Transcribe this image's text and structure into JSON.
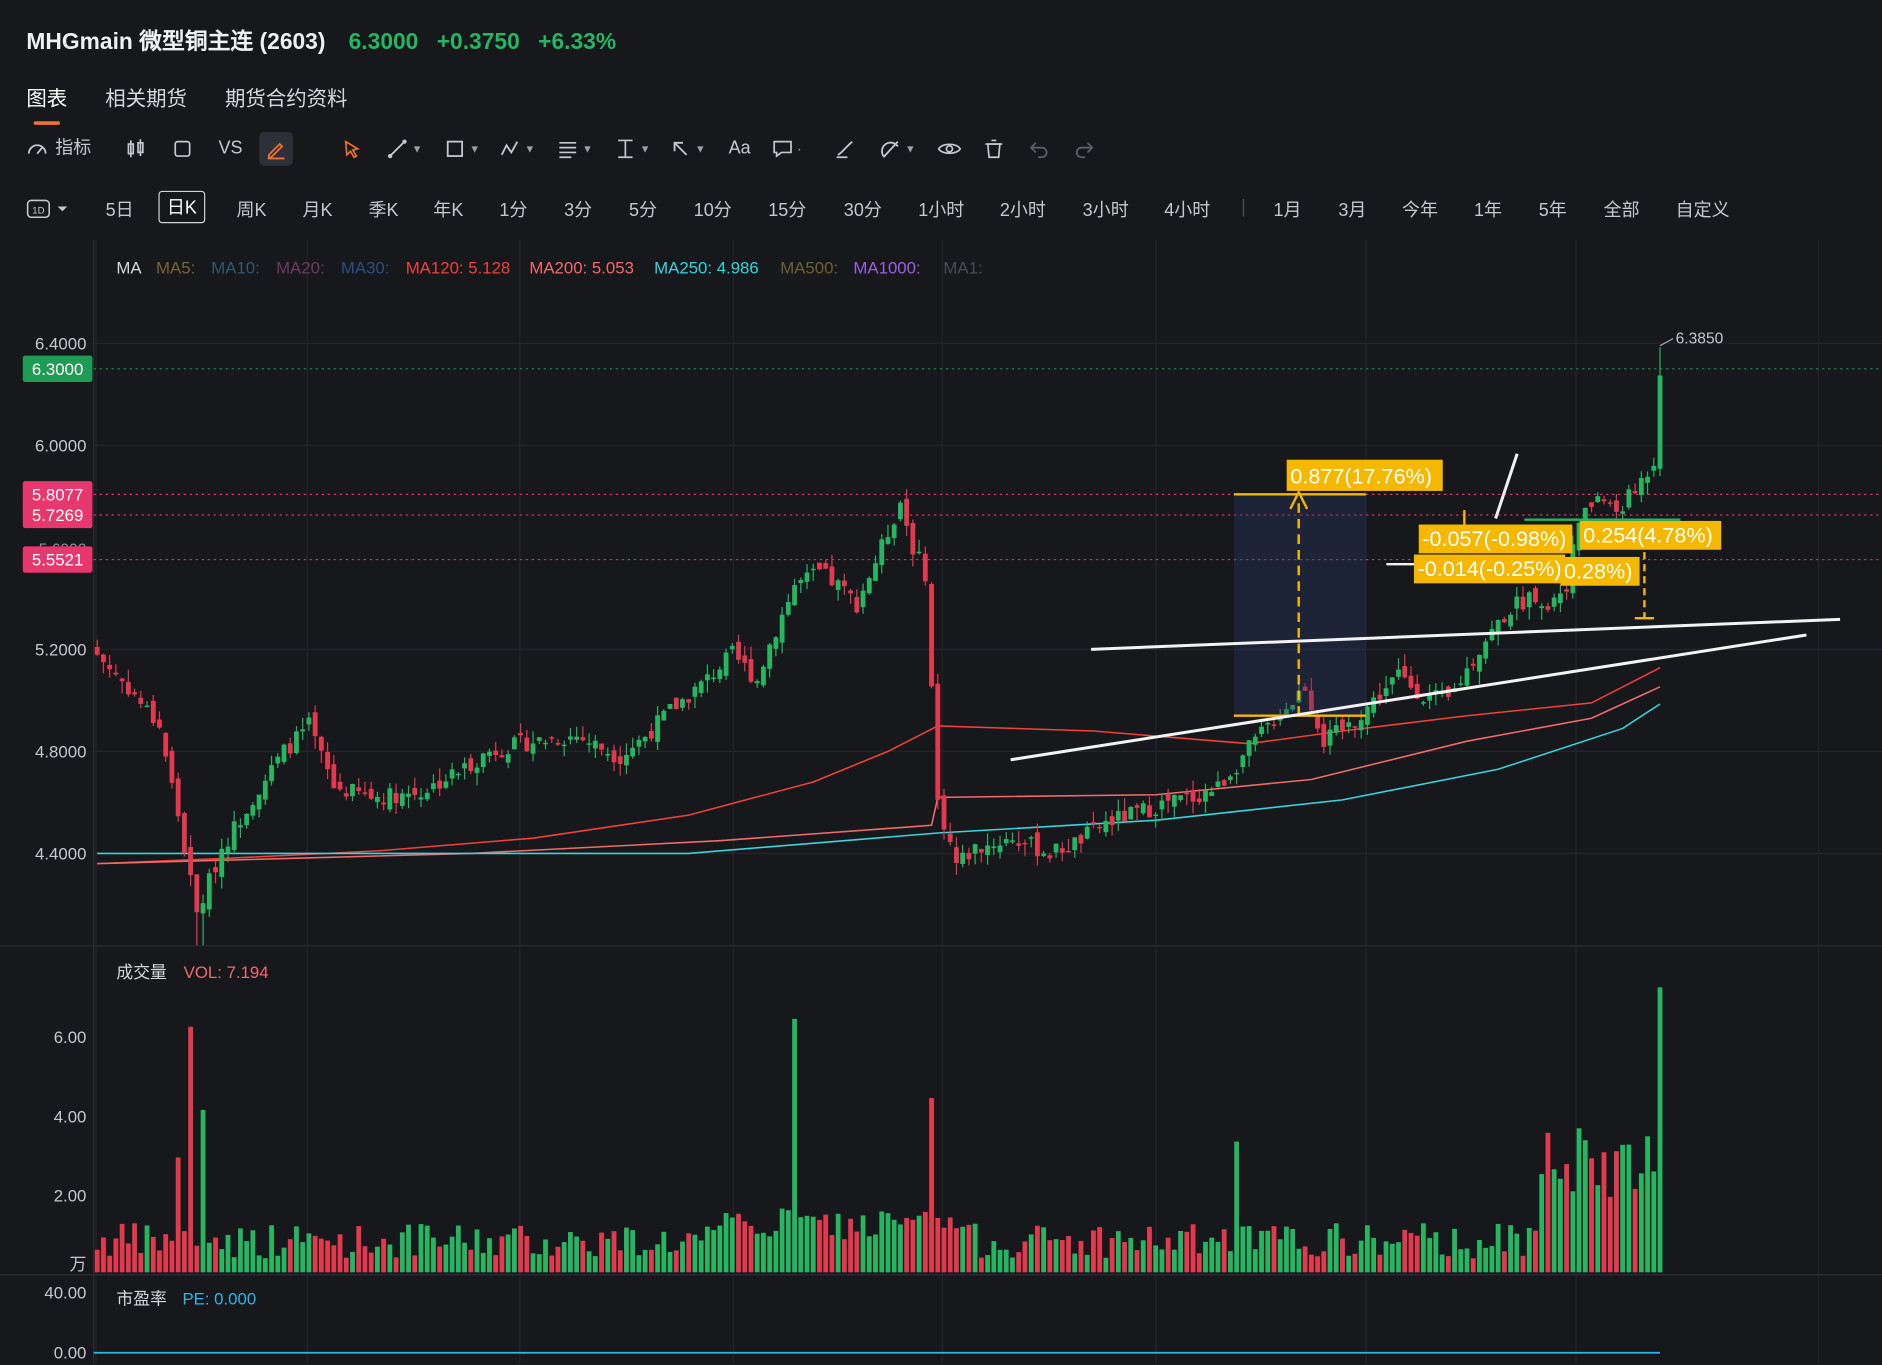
{
  "header": {
    "title": "MHGmain 微型铜主连 (2603)",
    "price": "6.3000",
    "change": "+0.3750",
    "change_pct": "+6.33%"
  },
  "tabs": [
    "图表",
    "相关期货",
    "期货合约资料"
  ],
  "active_tab": "图表",
  "toolbar": {
    "indicator_label": "指标",
    "compare_label": "VS",
    "text_tool_label": "Aa"
  },
  "period_selector": "1D",
  "periods": [
    "5日",
    "日K",
    "周K",
    "月K",
    "季K",
    "年K",
    "1分",
    "3分",
    "5分",
    "10分",
    "15分",
    "30分",
    "1小时",
    "2小时",
    "3小时",
    "4小时",
    "1月",
    "3月",
    "今年",
    "1年",
    "5年",
    "全部",
    "自定义"
  ],
  "selected_period": "日K",
  "ma_legend": {
    "label": "MA",
    "items": [
      {
        "text": "MA5:",
        "color": "#7a6434"
      },
      {
        "text": "MA10:",
        "color": "#2f5873"
      },
      {
        "text": "MA20:",
        "color": "#6c3b62"
      },
      {
        "text": "MA30:",
        "color": "#2b4e87"
      },
      {
        "text": "MA120: 5.128",
        "color": "#f0413b"
      },
      {
        "text": "MA200: 5.053",
        "color": "#f06b6b"
      },
      {
        "text": "MA250: 4.986",
        "color": "#39d4dc"
      },
      {
        "text": "MA500:",
        "color": "#6e6030"
      },
      {
        "text": "MA1000:",
        "color": "#9b5fe0"
      },
      {
        "text": "MA1:",
        "color": "#4a4d55"
      }
    ]
  },
  "price_axis": [
    "6.4000",
    "6.0000",
    "5.2000",
    "4.8000",
    "4.4000"
  ],
  "price_tags": [
    {
      "text": "6.3000",
      "color": "#1f9b55",
      "value": 6.3
    },
    {
      "text": "5.8077",
      "color": "#e6386e",
      "value": 5.8077
    },
    {
      "text": "5.7269",
      "color": "#e6386e",
      "value": 5.7269
    },
    {
      "text": "5.5521",
      "color": "#e6386e",
      "value": 5.5521
    }
  ],
  "partial_axis_label": "5.6000",
  "high_label": "6.3850",
  "measure_labels": [
    "0.877(17.76%)",
    "-0.057(-0.98%)",
    "0.254(4.78%)",
    "-0.014(-0.25%)",
    "0.28%)"
  ],
  "volume_panel": {
    "title": "成交量",
    "value_label": "VOL: 7.194",
    "unit": "万",
    "axis": [
      "6.00",
      "4.00",
      "2.00"
    ]
  },
  "pe_panel": {
    "title": "市盈率",
    "value_label": "PE: 0.000",
    "axis": [
      "40.00",
      "0.00"
    ]
  },
  "colors": {
    "up": "#26b560",
    "down": "#e3394e",
    "ma120": "#f0413b",
    "ma200": "#f06b6b",
    "ma250": "#39d4dc",
    "pe_line": "#2fb6e8",
    "annotation": "#f5b800"
  },
  "chart_data": {
    "type": "candlestick",
    "ylim": [
      4.0,
      6.6
    ],
    "series": [
      {
        "name": "MA120",
        "last": 5.128
      },
      {
        "name": "MA200",
        "last": 5.053
      },
      {
        "name": "MA250",
        "last": 4.986
      }
    ],
    "last_close": 6.3,
    "high": 6.385,
    "last_volume": 7.194,
    "pe": 0.0
  }
}
